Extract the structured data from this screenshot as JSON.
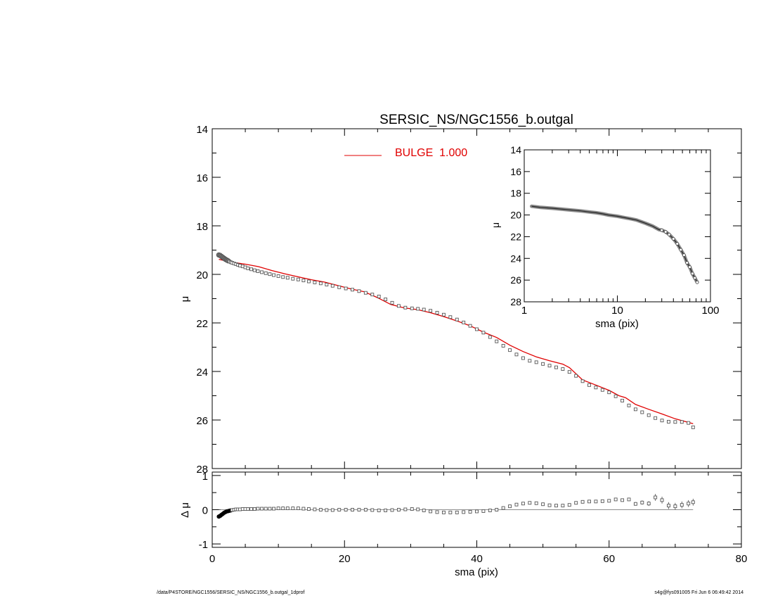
{
  "chart_data": [
    {
      "id": "main",
      "type": "scatter",
      "title": "SERSIC_NS/NGC1556_b.outgal",
      "xlabel": "",
      "ylabel": "μ",
      "xlim": [
        0,
        80
      ],
      "ylim": [
        28,
        14
      ],
      "y_inverted": true,
      "yticks": [
        14,
        16,
        18,
        20,
        22,
        24,
        26,
        28
      ],
      "legend": {
        "placement": "top-center",
        "entries": [
          {
            "label": "BULGE  1.000",
            "color": "#e00000",
            "style": "line"
          }
        ]
      },
      "series": [
        {
          "kind": "observed",
          "style": "squares",
          "color": "#555555",
          "x": [
            1.0,
            1.2,
            1.4,
            1.6,
            1.8,
            2.0,
            2.2,
            2.4,
            2.6,
            2.8,
            3.0,
            3.3,
            3.6,
            3.9,
            4.2,
            4.6,
            5.0,
            5.4,
            5.9,
            6.4,
            6.9,
            7.5,
            8.1,
            8.7,
            9.3,
            10.0,
            10.7,
            11.4,
            12.2,
            13.0,
            13.8,
            14.6,
            15.5,
            16.4,
            17.3,
            18.2,
            19.2,
            20.2,
            21.2,
            22.2,
            23.2,
            24.2,
            25.2,
            26.2,
            27.2,
            28.2,
            29.2,
            30.2,
            31.1,
            32.0,
            33.0,
            34.0,
            35.0,
            36.0,
            37.0,
            38.0,
            39.0,
            40.0,
            41.0,
            42.0,
            43.0,
            44.0,
            45.0,
            46.0,
            47.0,
            48.0,
            49.0,
            50.0,
            51.0,
            52.0,
            53.0,
            54.0,
            55.0,
            56.0,
            57.0,
            58.0,
            59.0,
            60.0,
            61.0,
            62.0,
            63.0,
            64.0,
            65.0,
            66.0,
            67.0,
            68.0,
            69.0,
            70.0,
            71.0,
            72.0,
            72.7
          ],
          "y": [
            19.2,
            19.22,
            19.26,
            19.3,
            19.34,
            19.38,
            19.41,
            19.44,
            19.47,
            19.5,
            19.52,
            19.55,
            19.58,
            19.61,
            19.64,
            19.67,
            19.71,
            19.75,
            19.79,
            19.83,
            19.87,
            19.91,
            19.95,
            19.99,
            20.03,
            20.07,
            20.11,
            20.14,
            20.18,
            20.21,
            20.25,
            20.29,
            20.33,
            20.37,
            20.42,
            20.47,
            20.53,
            20.58,
            20.63,
            20.69,
            20.76,
            20.83,
            20.91,
            21.03,
            21.17,
            21.3,
            21.37,
            21.4,
            21.42,
            21.45,
            21.5,
            21.58,
            21.66,
            21.76,
            21.86,
            21.98,
            22.12,
            22.26,
            22.4,
            22.58,
            22.76,
            22.94,
            23.12,
            23.3,
            23.45,
            23.56,
            23.62,
            23.69,
            23.76,
            23.83,
            23.9,
            24.02,
            24.18,
            24.4,
            24.56,
            24.66,
            24.76,
            24.86,
            25.02,
            25.2,
            25.4,
            25.56,
            25.68,
            25.8,
            25.92,
            26.02,
            26.07,
            26.08,
            26.08,
            26.12,
            26.3
          ]
        },
        {
          "kind": "model",
          "name": "BULGE  1.000",
          "style": "line",
          "color": "#e00000",
          "x": [
            1.0,
            3.0,
            5.0,
            7.0,
            9.0,
            11.0,
            13.0,
            15.0,
            17.0,
            19.0,
            21.0,
            23.0,
            25.0,
            27.0,
            29.0,
            31.0,
            33.0,
            35.0,
            37.0,
            39.0,
            41.0,
            43.0,
            45.0,
            47.0,
            49.0,
            51.0,
            53.0,
            54.0,
            56.0,
            58.0,
            60.0,
            61.5,
            62.5,
            64.0,
            66.0,
            68.0,
            70.0,
            72.7
          ],
          "y": [
            19.38,
            19.5,
            19.58,
            19.68,
            19.84,
            19.98,
            20.1,
            20.22,
            20.32,
            20.46,
            20.6,
            20.72,
            20.96,
            21.24,
            21.38,
            21.45,
            21.58,
            21.74,
            21.92,
            22.12,
            22.38,
            22.6,
            22.92,
            23.18,
            23.4,
            23.56,
            23.7,
            23.84,
            24.35,
            24.56,
            24.78,
            25.0,
            25.08,
            25.36,
            25.56,
            25.75,
            25.95,
            26.15
          ]
        }
      ]
    },
    {
      "id": "inset",
      "type": "scatter",
      "xlabel": "sma (pix)",
      "ylabel": "μ",
      "x_scale": "log",
      "xlim": [
        1,
        100
      ],
      "xticks": [
        1,
        10,
        100
      ],
      "ylim": [
        28,
        14
      ],
      "y_inverted": true,
      "yticks": [
        14,
        16,
        18,
        20,
        22,
        24,
        26,
        28
      ],
      "series": [
        {
          "kind": "observed",
          "style": "thick",
          "color": "#555555",
          "x": [
            1.2,
            1.5,
            2.0,
            3.0,
            4.0,
            5.0,
            6.0,
            7.0,
            8.0,
            10.0,
            12.0,
            14.0,
            16.0,
            18.0,
            20.0,
            22.0,
            24.0,
            26.0,
            28.0,
            30.0,
            33.0,
            36.0,
            40.0,
            44.0,
            48.0,
            52.0,
            56.0,
            60.0,
            64.0,
            68.0,
            72.0
          ],
          "y": [
            19.2,
            19.3,
            19.38,
            19.52,
            19.62,
            19.72,
            19.8,
            19.9,
            20.0,
            20.12,
            20.25,
            20.36,
            20.46,
            20.62,
            20.76,
            20.9,
            21.03,
            21.2,
            21.35,
            21.4,
            21.55,
            21.8,
            22.2,
            22.65,
            23.2,
            23.7,
            24.4,
            24.8,
            25.4,
            25.8,
            26.2
          ]
        }
      ]
    },
    {
      "id": "residual",
      "type": "scatter",
      "xlabel": "sma (pix)",
      "ylabel": "Δ μ",
      "xlim": [
        0,
        80
      ],
      "xticks": [
        0,
        20,
        40,
        60,
        80
      ],
      "ylim": [
        -1.1,
        1.1
      ],
      "yticks": [
        -1,
        0,
        1
      ],
      "reference_line": 0,
      "series": [
        {
          "kind": "residual",
          "style": "squares",
          "color": "#555555",
          "x": [
            1.0,
            1.2,
            1.4,
            1.6,
            1.8,
            2.0,
            2.2,
            2.4,
            2.6,
            2.8,
            3.0,
            3.3,
            3.6,
            3.9,
            4.2,
            4.6,
            5.0,
            5.4,
            5.9,
            6.4,
            6.9,
            7.5,
            8.1,
            8.7,
            9.3,
            10.0,
            10.7,
            11.4,
            12.2,
            13.0,
            13.8,
            14.6,
            15.5,
            16.4,
            17.3,
            18.2,
            19.2,
            20.2,
            21.2,
            22.2,
            23.2,
            24.2,
            25.2,
            26.2,
            27.2,
            28.2,
            29.2,
            30.2,
            31.1,
            32.0,
            33.0,
            34.0,
            35.0,
            36.0,
            37.0,
            38.0,
            39.0,
            40.0,
            41.0,
            42.0,
            43.0,
            44.0,
            45.0,
            46.0,
            47.0,
            48.0,
            49.0,
            50.0,
            51.0,
            52.0,
            53.0,
            54.0,
            55.0,
            56.0,
            57.0,
            58.0,
            59.0,
            60.0,
            61.0,
            62.0,
            63.0,
            64.0,
            65.0,
            66.0,
            67.0,
            68.0,
            69.0,
            70.0,
            71.0,
            72.0,
            72.7
          ],
          "y": [
            -0.2,
            -0.18,
            -0.15,
            -0.12,
            -0.09,
            -0.07,
            -0.05,
            -0.04,
            -0.03,
            -0.02,
            -0.01,
            0.0,
            0.01,
            0.01,
            0.01,
            0.02,
            0.02,
            0.02,
            0.02,
            0.02,
            0.03,
            0.03,
            0.03,
            0.03,
            0.03,
            0.04,
            0.04,
            0.04,
            0.04,
            0.04,
            0.03,
            0.02,
            0.01,
            0.0,
            -0.01,
            -0.01,
            0.0,
            0.0,
            0.0,
            0.0,
            0.0,
            -0.01,
            -0.02,
            -0.02,
            -0.01,
            0.0,
            0.01,
            0.02,
            0.01,
            -0.02,
            -0.05,
            -0.07,
            -0.08,
            -0.08,
            -0.08,
            -0.07,
            -0.06,
            -0.05,
            -0.04,
            -0.02,
            0.0,
            0.05,
            0.1,
            0.15,
            0.18,
            0.2,
            0.19,
            0.16,
            0.13,
            0.12,
            0.12,
            0.14,
            0.2,
            0.23,
            0.24,
            0.24,
            0.25,
            0.26,
            0.3,
            0.28,
            0.3,
            0.17,
            0.21,
            0.18,
            0.36,
            0.28,
            0.12,
            0.1,
            0.14,
            0.18,
            0.22
          ],
          "error": [
            0.01,
            0.01,
            0.01,
            0.01,
            0.01,
            0.01,
            0.01,
            0.01,
            0.01,
            0.01,
            0.01,
            0.01,
            0.01,
            0.01,
            0.01,
            0.01,
            0.01,
            0.01,
            0.01,
            0.01,
            0.01,
            0.01,
            0.01,
            0.01,
            0.01,
            0.01,
            0.01,
            0.01,
            0.01,
            0.01,
            0.01,
            0.01,
            0.01,
            0.01,
            0.01,
            0.01,
            0.01,
            0.01,
            0.01,
            0.01,
            0.01,
            0.01,
            0.01,
            0.01,
            0.01,
            0.01,
            0.01,
            0.01,
            0.01,
            0.01,
            0.01,
            0.01,
            0.01,
            0.01,
            0.01,
            0.01,
            0.01,
            0.01,
            0.01,
            0.01,
            0.01,
            0.01,
            0.01,
            0.01,
            0.01,
            0.01,
            0.02,
            0.02,
            0.02,
            0.02,
            0.02,
            0.02,
            0.02,
            0.03,
            0.03,
            0.03,
            0.03,
            0.03,
            0.04,
            0.04,
            0.04,
            0.05,
            0.06,
            0.07,
            0.1,
            0.1,
            0.1,
            0.1,
            0.1,
            0.1,
            0.1
          ]
        }
      ]
    }
  ],
  "footer": {
    "path": "/data/P4STORE/NGC1556/SERSIC_NS/NGC1556_b.outgal_1dprof",
    "stamp": "s4g@fys091005  Fri Jun  6 06:49:42 2014"
  }
}
